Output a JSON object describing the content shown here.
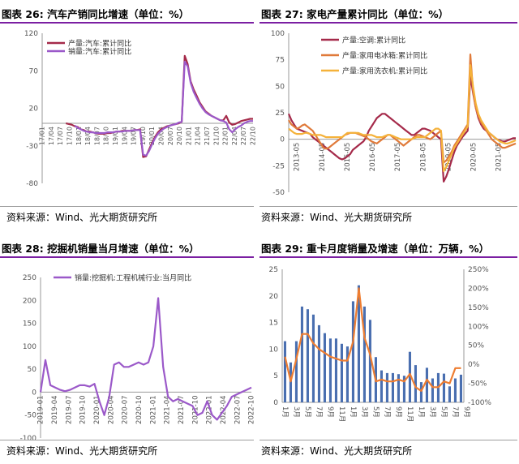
{
  "source_text": "资料来源：Wind、光大期货研究所",
  "colors": {
    "rule": "#7b1fa2",
    "axis": "#999999",
    "tick": "#555555"
  },
  "chart_data": [
    {
      "id": "c26",
      "type": "line",
      "title": "图表 26:  汽车产销同比增速（单位：%）",
      "ylim": [
        -80,
        120
      ],
      "yticks": [
        120,
        70,
        20,
        -30,
        -80
      ],
      "x_labels": [
        "17/01",
        "17/04",
        "17/07",
        "17/10",
        "18/01",
        "18/04",
        "18/07",
        "18/10",
        "19/01",
        "19/04",
        "19/07",
        "19/10",
        "20/01",
        "20/04",
        "20/07",
        "20/10",
        "21/01",
        "21/04",
        "21/07",
        "21/10",
        "22/01",
        "22/04",
        "22/07",
        "22/10"
      ],
      "series": [
        {
          "name": "产量:汽车:累计同比",
          "color": "#a52a4a",
          "values": [
            null,
            null,
            null,
            null,
            null,
            null,
            null,
            null,
            0,
            -1,
            -2,
            -4,
            -5,
            -8,
            -9,
            -11,
            -11,
            -12,
            -13,
            -14,
            -14,
            -14,
            -13,
            -13,
            -12,
            -11,
            -11,
            -10,
            -10,
            -10,
            -10,
            -9,
            -9,
            -8,
            -45,
            -44,
            -35,
            -26,
            -18,
            -12,
            -8,
            -6,
            -4,
            -3,
            -2,
            -1,
            0,
            2,
            90,
            79,
            56,
            45,
            37,
            28,
            22,
            16,
            13,
            10,
            8,
            6,
            4,
            4,
            10,
            1,
            -2,
            -1,
            1,
            3,
            4,
            5,
            6,
            6
          ]
        },
        {
          "name": "销量:汽车:累计同比",
          "color": "#9b59c9",
          "values": [
            null,
            null,
            null,
            null,
            null,
            null,
            null,
            null,
            null,
            null,
            null,
            -3,
            -6,
            -8,
            -10,
            -11,
            -12,
            -12,
            -13,
            -13,
            -13,
            -13,
            -12,
            -12,
            -12,
            -11,
            -11,
            -11,
            -10,
            -10,
            -10,
            -9,
            -9,
            -9,
            -42,
            -43,
            -37,
            -28,
            -20,
            -14,
            -10,
            -7,
            -5,
            -3,
            -2,
            -1,
            1,
            2,
            82,
            76,
            54,
            42,
            34,
            26,
            20,
            15,
            12,
            10,
            8,
            6,
            4,
            3,
            1,
            -8,
            -12,
            -8,
            -5,
            -3,
            0,
            2,
            3,
            3
          ]
        }
      ]
    },
    {
      "id": "c27",
      "type": "line",
      "title": "图表 27:  家电产量累计同比（单位：%）",
      "ylim": [
        -50,
        100
      ],
      "yticks": [
        100,
        75,
        50,
        25,
        0,
        -25,
        -50
      ],
      "x_labels": [
        "2013-05",
        "2014-05",
        "2015-05",
        "2016-05",
        "2017-05",
        "2018-05",
        "2019-05",
        "2020-05",
        "2021-05",
        "2022-05"
      ],
      "series": [
        {
          "name": "产量:空调:累计同比",
          "color": "#a52a4a",
          "values": [
            24,
            18,
            14,
            10,
            9,
            8,
            7,
            6,
            5,
            2,
            0,
            -2,
            -4,
            -6,
            -8,
            -10,
            -12,
            -14,
            -16,
            -18,
            -19,
            -18,
            -16,
            -14,
            -10,
            -8,
            -6,
            -4,
            -2,
            2,
            8,
            12,
            16,
            20,
            22,
            24,
            24,
            22,
            20,
            18,
            16,
            14,
            12,
            10,
            8,
            6,
            4,
            4,
            6,
            8,
            10,
            10,
            9,
            8,
            6,
            4,
            2,
            0,
            -40,
            -35,
            -28,
            -20,
            -12,
            -6,
            -2,
            2,
            5,
            8,
            60,
            44,
            30,
            20,
            14,
            10,
            8,
            6,
            4,
            2,
            0,
            -1,
            -2,
            -2,
            -1,
            0,
            1,
            1
          ]
        },
        {
          "name": "产量:家用电冰箱:累计同比",
          "color": "#e07a3a",
          "values": [
            18,
            14,
            12,
            10,
            11,
            13,
            14,
            12,
            10,
            8,
            4,
            0,
            -4,
            -8,
            -9,
            -8,
            -6,
            -4,
            -2,
            0,
            2,
            4,
            5,
            6,
            6,
            6,
            5,
            4,
            3,
            2,
            0,
            -2,
            -3,
            -4,
            -2,
            0,
            2,
            4,
            4,
            2,
            0,
            -2,
            -4,
            -6,
            -4,
            -2,
            0,
            2,
            4,
            4,
            3,
            2,
            1,
            0,
            2,
            4,
            6,
            8,
            -22,
            -20,
            -16,
            -12,
            -6,
            -2,
            2,
            6,
            10,
            14,
            80,
            46,
            30,
            22,
            16,
            12,
            8,
            4,
            0,
            -2,
            -4,
            -6,
            -8,
            -8,
            -7,
            -6,
            -5,
            -4
          ]
        },
        {
          "name": "产量:家用洗衣机:累计同比",
          "color": "#f5b23a",
          "values": [
            10,
            8,
            6,
            5,
            5,
            5,
            6,
            6,
            5,
            4,
            4,
            4,
            4,
            3,
            2,
            2,
            2,
            2,
            2,
            2,
            2,
            4,
            6,
            6,
            6,
            6,
            6,
            5,
            4,
            4,
            4,
            4,
            3,
            2,
            2,
            2,
            3,
            4,
            4,
            3,
            2,
            1,
            0,
            0,
            0,
            0,
            0,
            1,
            2,
            2,
            2,
            2,
            4,
            6,
            8,
            10,
            10,
            8,
            -30,
            -26,
            -20,
            -14,
            -8,
            -4,
            0,
            4,
            8,
            12,
            70,
            50,
            34,
            24,
            18,
            14,
            10,
            6,
            4,
            2,
            0,
            -2,
            -3,
            -4,
            -4,
            -3,
            -2,
            -1
          ]
        }
      ]
    },
    {
      "id": "c28",
      "type": "line",
      "title": "图表 28:  挖掘机销量当月增速（单位：%）",
      "ylim": [
        -100,
        250
      ],
      "yticks": [
        250,
        200,
        150,
        100,
        50,
        0,
        -50,
        -100
      ],
      "x_labels": [
        "2019-01",
        "2019-04",
        "2019-07",
        "2019-10",
        "2020-01",
        "2020-04",
        "2020-07",
        "2020-10",
        "2021-01",
        "2021-04",
        "2021-07",
        "2021-10",
        "2022-01",
        "2022-04",
        "2022-07",
        "2022-10"
      ],
      "series": [
        {
          "name": "销量:挖掘机:工程机械行业:当月同比",
          "color": "#9b59c9",
          "values": [
            0,
            70,
            15,
            10,
            5,
            2,
            5,
            10,
            15,
            15,
            12,
            18,
            -20,
            -50,
            -10,
            60,
            65,
            55,
            55,
            60,
            65,
            60,
            65,
            100,
            205,
            55,
            -10,
            -20,
            -15,
            -20,
            -25,
            -30,
            -50,
            -45,
            -20,
            -50,
            -60,
            -45,
            -30,
            -10,
            -5,
            0,
            5,
            10
          ]
        }
      ]
    },
    {
      "id": "c29",
      "type": "bar+line",
      "title": "图表 29:  重卡月度销量及增速（单位：万辆，%）",
      "ylim_left": [
        0,
        25
      ],
      "yticks_left": [
        25,
        20,
        15,
        10,
        5,
        0
      ],
      "ylim_right": [
        -100,
        250
      ],
      "yticks_right": [
        "250%",
        "200%",
        "150%",
        "100%",
        "50%",
        "0%",
        "-50%",
        "-100%"
      ],
      "x_labels": [
        "1月",
        "3月",
        "5月",
        "7月",
        "9月",
        "11月",
        "1月",
        "3月",
        "5月",
        "7月",
        "9月",
        "11月",
        "1月",
        "3月",
        "5月",
        "7月",
        "9月"
      ],
      "bars": {
        "color": "#4a6fb0",
        "values": [
          11.5,
          7.5,
          11.5,
          18,
          17.5,
          16.5,
          14.5,
          13,
          12,
          12,
          11,
          10.5,
          19,
          22,
          18,
          15.5,
          8.5,
          6,
          5.5,
          5.5,
          5.3,
          5,
          9.5,
          7,
          3.8,
          6.5,
          4.5,
          5.5,
          5.4,
          3,
          4.5,
          5.2
        ]
      },
      "line": {
        "color": "#ee7d31",
        "values": [
          20,
          -45,
          15,
          80,
          80,
          55,
          40,
          30,
          20,
          15,
          10,
          10,
          60,
          200,
          70,
          25,
          -45,
          -40,
          -45,
          -45,
          -40,
          -45,
          -25,
          -60,
          -70,
          -40,
          -60,
          -60,
          -45,
          -50,
          -10,
          -10
        ]
      }
    }
  ]
}
